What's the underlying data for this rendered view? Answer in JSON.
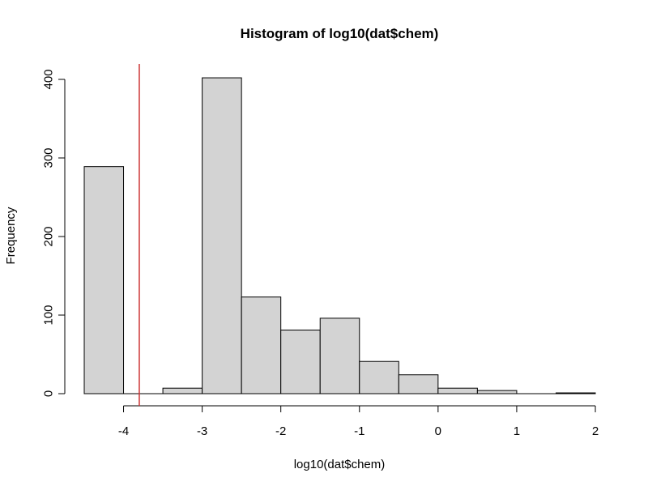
{
  "chart_data": {
    "type": "bar",
    "title": "Histogram of log10(dat$chem)",
    "xlabel": "log10(dat$chem)",
    "ylabel": "Frequency",
    "xlim": [
      -4.5,
      2
    ],
    "ylim": [
      0,
      400
    ],
    "x_ticks": [
      -4,
      -3,
      -2,
      -1,
      0,
      1,
      2
    ],
    "y_ticks": [
      0,
      100,
      200,
      300,
      400
    ],
    "bin_edges": [
      -4.5,
      -4,
      -3.5,
      -3,
      -2.5,
      -2,
      -1.5,
      -1,
      -0.5,
      0,
      0.5,
      1,
      1.5,
      2
    ],
    "values": [
      289,
      0,
      7,
      402,
      123,
      81,
      96,
      41,
      24,
      7,
      4,
      0,
      1
    ],
    "reference_line": {
      "x": -3.8,
      "color": "#cc3333"
    },
    "bar_fill": "#d3d3d3",
    "bar_stroke": "#000000",
    "grid": false
  }
}
